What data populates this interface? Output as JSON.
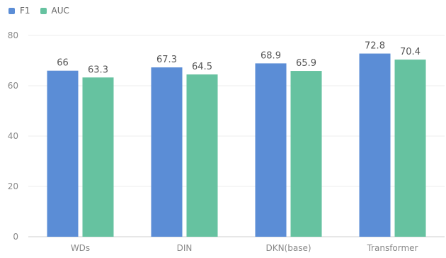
{
  "chart_data": {
    "type": "bar",
    "categories": [
      "WDs",
      "DIN",
      "DKN(base)",
      "Transformer"
    ],
    "series": [
      {
        "name": "F1",
        "values": [
          66,
          67.3,
          68.9,
          72.8
        ],
        "color": "#5b8dd6"
      },
      {
        "name": "AUC",
        "values": [
          63.3,
          64.5,
          65.9,
          70.4
        ],
        "color": "#66c2a0"
      }
    ],
    "title": "",
    "xlabel": "",
    "ylabel": "",
    "ylim": [
      0,
      80
    ],
    "yticks": [
      0,
      20,
      40,
      60,
      80
    ],
    "grid": true,
    "legend_position": "top-left"
  }
}
